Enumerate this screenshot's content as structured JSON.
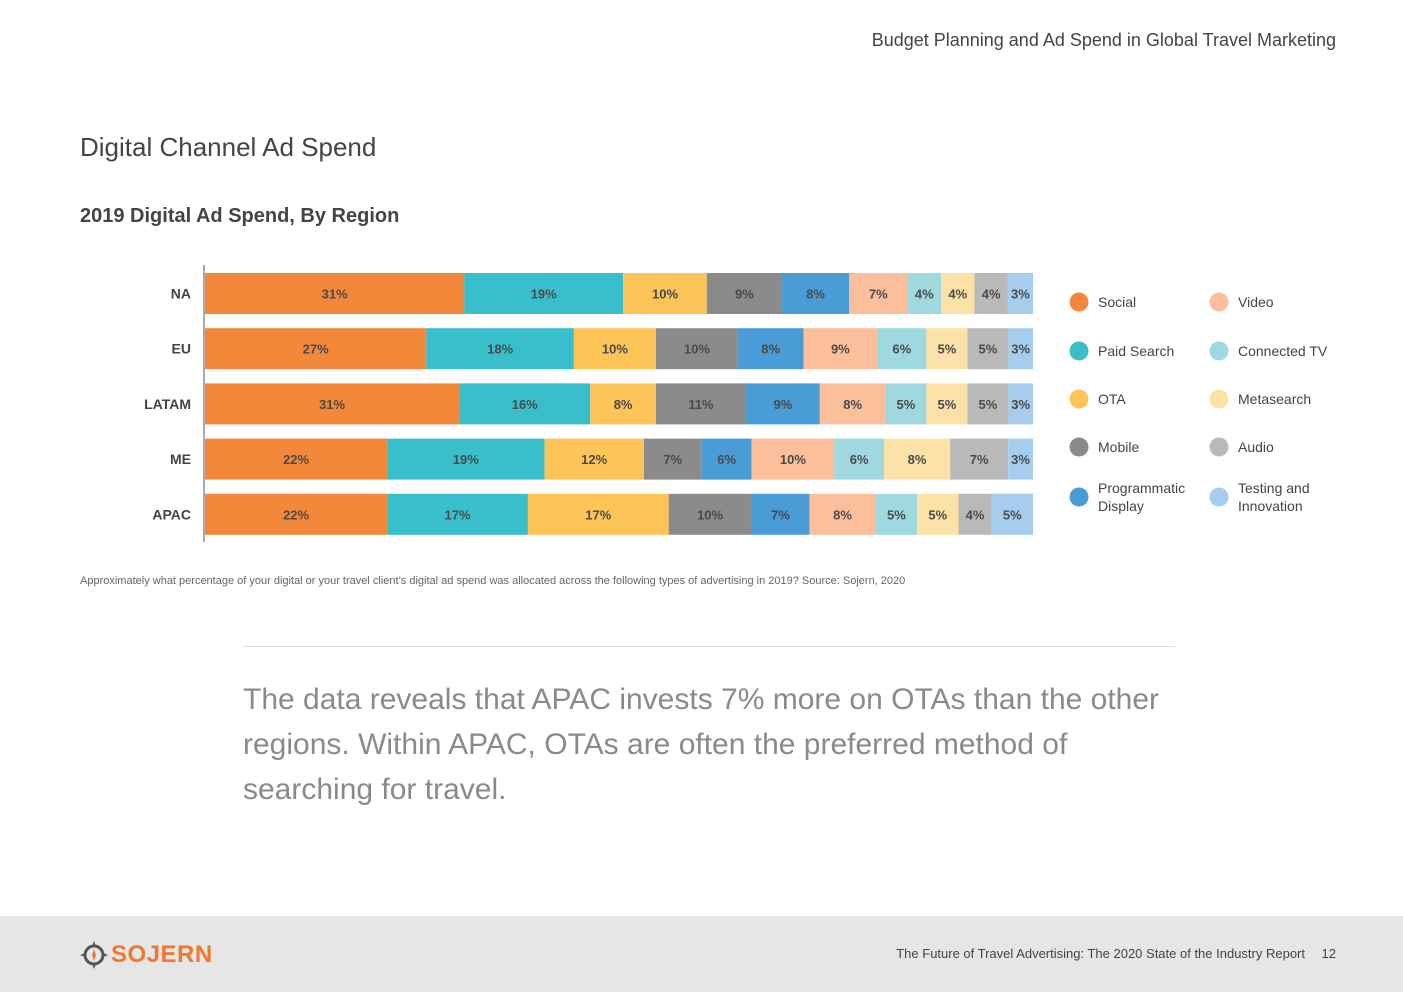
{
  "header": {
    "title": "Budget Planning and Ad Spend in Global Travel Marketing"
  },
  "page_title": "Digital Channel Ad Spend",
  "chart_data": {
    "type": "bar",
    "orientation": "horizontal",
    "stacked": true,
    "title": "2019 Digital Ad Spend, By Region",
    "categories": [
      "NA",
      "EU",
      "LATAM",
      "ME",
      "APAC"
    ],
    "series": [
      {
        "name": "Social",
        "color": "#f4883a",
        "values": [
          31,
          27,
          31,
          22,
          22
        ]
      },
      {
        "name": "Paid Search",
        "color": "#38bfcb",
        "values": [
          19,
          18,
          16,
          19,
          17
        ]
      },
      {
        "name": "OTA",
        "color": "#fdc557",
        "values": [
          10,
          10,
          8,
          12,
          17
        ]
      },
      {
        "name": "Mobile",
        "color": "#8b8b8b",
        "values": [
          9,
          10,
          11,
          7,
          10
        ]
      },
      {
        "name": "Programmatic Display",
        "color": "#4a9cd6",
        "values": [
          8,
          8,
          9,
          6,
          7
        ]
      },
      {
        "name": "Video",
        "color": "#fbbf9c",
        "values": [
          7,
          9,
          8,
          10,
          8
        ]
      },
      {
        "name": "Connected TV",
        "color": "#9fd8df",
        "values": [
          4,
          6,
          5,
          6,
          5
        ]
      },
      {
        "name": "Metasearch",
        "color": "#fde2a8",
        "values": [
          4,
          5,
          5,
          8,
          5
        ]
      },
      {
        "name": "Audio",
        "color": "#b9b9b9",
        "values": [
          4,
          5,
          5,
          7,
          4
        ]
      },
      {
        "name": "Testing and Innovation",
        "color": "#a6cdee",
        "values": [
          3,
          3,
          3,
          3,
          5
        ]
      }
    ],
    "value_suffix": "%",
    "legend_position": "right",
    "grid": false
  },
  "footnote": "Approximately what percentage of your digital or your travel client’s digital ad spend was allocated across the following types of advertising in 2019? Source: Sojern, 2020",
  "quote": "The data reveals that APAC invests 7% more on OTAs than the other regions. Within APAC, OTAs are often the preferred method of searching for travel.",
  "footer": {
    "logo_text": "SOJERN",
    "report_title": "The Future of Travel Advertising: The 2020 State of the Industry Report",
    "page_number": "12"
  },
  "colors": {
    "brand": "#f3772d",
    "footer_bg": "#e6e6e6"
  }
}
